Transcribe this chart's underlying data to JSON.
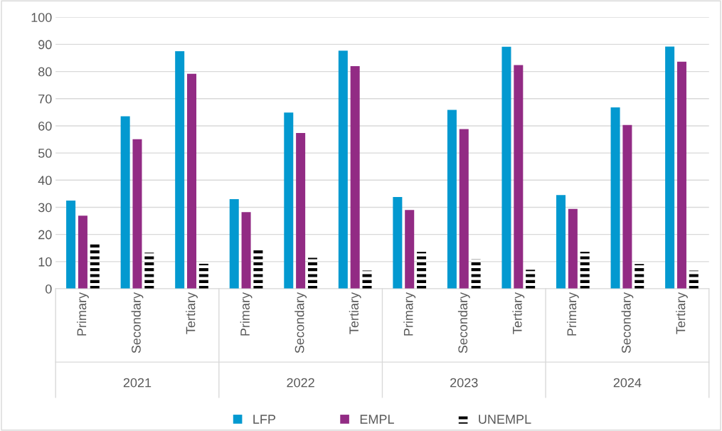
{
  "chart_data": {
    "type": "bar",
    "categories": [
      "Primary",
      "Secondary",
      "Tertiary",
      "Primary",
      "Secondary",
      "Tertiary",
      "Primary",
      "Secondary",
      "Tertiary",
      "Primary",
      "Secondary",
      "Tertiary"
    ],
    "annotations": [
      "2021",
      "2022",
      "2023",
      "2024"
    ],
    "series": [
      {
        "name": "LFP",
        "color": "#0399d0",
        "values": [
          32.5,
          63.5,
          87.5,
          33.0,
          64.9,
          87.7,
          33.8,
          65.9,
          89.1,
          34.5,
          66.8,
          89.2
        ]
      },
      {
        "name": "EMPL",
        "color": "#922b84",
        "values": [
          26.9,
          55.1,
          79.2,
          28.2,
          57.4,
          82.0,
          29.0,
          58.8,
          82.4,
          29.4,
          60.3,
          83.6
        ]
      },
      {
        "name": "UNEMPL",
        "color": "#000000",
        "values": [
          17.3,
          13.3,
          9.2,
          14.8,
          11.4,
          6.7,
          13.6,
          10.9,
          7.0,
          13.6,
          9.1,
          6.7
        ]
      }
    ],
    "ylim": [
      0,
      100
    ],
    "yticks": [
      0,
      10,
      20,
      30,
      40,
      50,
      60,
      70,
      80,
      90,
      100
    ],
    "grid": "y",
    "legend": "bottom"
  }
}
